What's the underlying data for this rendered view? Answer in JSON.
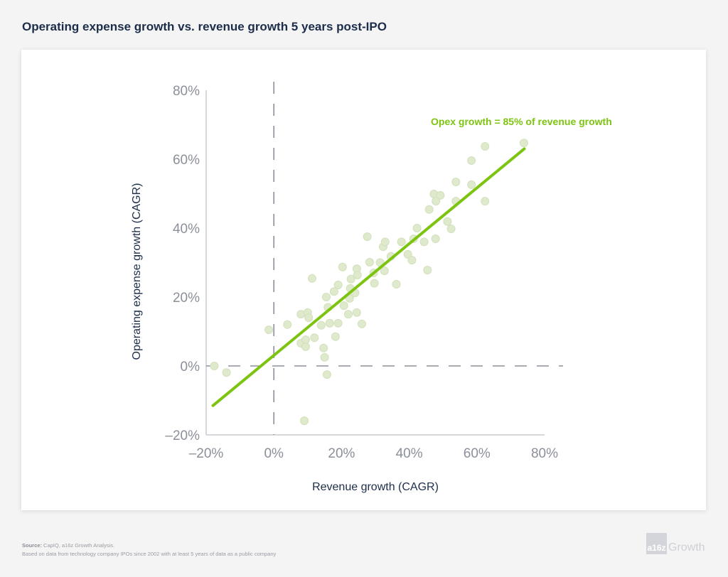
{
  "title": "Operating expense growth vs. revenue growth 5 years post-IPO",
  "footer": {
    "source_label": "Source:",
    "source_text": "CapIQ, a16z Growth Analysis.",
    "note": "Based on data from technology company IPOs since 2002 with at least 5 years of data as a public company",
    "logo_mark": "a16z",
    "logo_word": "Growth"
  },
  "chart_data": {
    "type": "scatter",
    "xlabel": "Revenue growth (CAGR)",
    "ylabel": "Operating expense growth (CAGR)",
    "xlim": [
      -20,
      80
    ],
    "ylim": [
      -20,
      80
    ],
    "x_ticks": [
      "–20%",
      "0%",
      "20%",
      "40%",
      "60%",
      "80%"
    ],
    "y_ticks": [
      "80%",
      "60%",
      "40%",
      "20%",
      "0%",
      "–20%"
    ],
    "x_tick_values": [
      -20,
      0,
      20,
      40,
      60,
      80
    ],
    "y_tick_values": [
      80,
      60,
      40,
      20,
      0,
      -20
    ],
    "grid": false,
    "reference_lines": {
      "x": 0,
      "y": 0,
      "style": "dashed"
    },
    "annotation": "Opex growth = 85% of revenue growth",
    "trendline": {
      "x": [
        -18,
        74
      ],
      "y": [
        -11.5,
        63
      ]
    },
    "colors": {
      "trendline": "#7dc411",
      "points": "#dfe9cc",
      "annotation": "#7dc411",
      "title": "#1c2d4a",
      "axis_text": "#8b8f99"
    },
    "points": [
      [
        -17.6,
        0
      ],
      [
        -14,
        -1.9
      ],
      [
        -1.5,
        10.5
      ],
      [
        4,
        12
      ],
      [
        9,
        -15.9
      ],
      [
        8,
        15
      ],
      [
        10,
        15.5
      ],
      [
        11.3,
        25.4
      ],
      [
        8,
        6.6
      ],
      [
        9.4,
        5.6
      ],
      [
        9.4,
        7.6
      ],
      [
        12,
        8.2
      ],
      [
        10.3,
        14
      ],
      [
        14,
        11.8
      ],
      [
        14.7,
        5.2
      ],
      [
        15,
        2.5
      ],
      [
        15.7,
        -2.5
      ],
      [
        15.5,
        20
      ],
      [
        16,
        17
      ],
      [
        16.5,
        12.4
      ],
      [
        17.8,
        21.6
      ],
      [
        18.2,
        8.5
      ],
      [
        19,
        12.4
      ],
      [
        19,
        23.5
      ],
      [
        20.3,
        28.7
      ],
      [
        20.7,
        17.5
      ],
      [
        22,
        15
      ],
      [
        22.4,
        19.6
      ],
      [
        22.6,
        22.5
      ],
      [
        22.8,
        25.2
      ],
      [
        24.5,
        28.2
      ],
      [
        24.7,
        26.4
      ],
      [
        24,
        21.2
      ],
      [
        24.5,
        15.5
      ],
      [
        26,
        12.2
      ],
      [
        27.6,
        37.5
      ],
      [
        28.3,
        30.1
      ],
      [
        29.5,
        27
      ],
      [
        29.7,
        24
      ],
      [
        31.4,
        30
      ],
      [
        32.3,
        34.6
      ],
      [
        32.9,
        36
      ],
      [
        32.7,
        27.6
      ],
      [
        34.6,
        31.8
      ],
      [
        36.2,
        23.7
      ],
      [
        37.7,
        36
      ],
      [
        39.6,
        32.4
      ],
      [
        40.8,
        30.7
      ],
      [
        41.3,
        36.9
      ],
      [
        42.3,
        40
      ],
      [
        44.4,
        36
      ],
      [
        45.4,
        27.8
      ],
      [
        45.9,
        45.4
      ],
      [
        47.3,
        49.9
      ],
      [
        49.2,
        49.5
      ],
      [
        47.9,
        47.8
      ],
      [
        47.8,
        36.9
      ],
      [
        51.3,
        41.9
      ],
      [
        52.4,
        39.8
      ],
      [
        53.8,
        53.4
      ],
      [
        53.8,
        47.8
      ],
      [
        58.4,
        59.6
      ],
      [
        58.4,
        52.6
      ],
      [
        62.4,
        63.7
      ],
      [
        62.4,
        47.8
      ],
      [
        73.9,
        64.7
      ]
    ]
  }
}
